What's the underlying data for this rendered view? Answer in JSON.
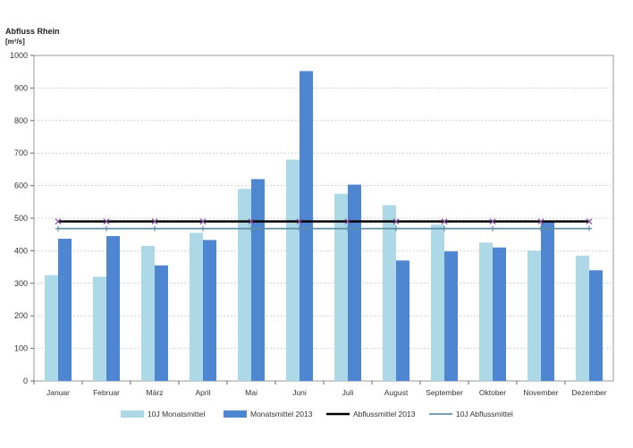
{
  "chart_data": {
    "type": "bar",
    "title": "Abfluss Rhein",
    "ylabel": "[m³/s]",
    "xlabel": "",
    "ylim": [
      0,
      1000
    ],
    "yticks": [
      0,
      100,
      200,
      300,
      400,
      500,
      600,
      700,
      800,
      900,
      1000
    ],
    "categories": [
      "Januar",
      "Februar",
      "März",
      "April",
      "Mai",
      "Juni",
      "Juli",
      "August",
      "September",
      "Oktober",
      "November",
      "Dezember"
    ],
    "series": [
      {
        "name": "10J Monatsmittel",
        "type": "bar",
        "color": "#add8e6",
        "values": [
          325,
          320,
          415,
          455,
          590,
          680,
          575,
          540,
          480,
          425,
          400,
          385
        ]
      },
      {
        "name": "Monatsmittel 2013",
        "type": "bar",
        "color": "#4f86d1",
        "values": [
          437,
          445,
          355,
          433,
          620,
          952,
          603,
          370,
          398,
          410,
          490,
          340
        ]
      },
      {
        "name": "Abflussmittel 2013",
        "type": "line",
        "color": "#000000",
        "value": 490
      },
      {
        "name": "10J Abflussmittel",
        "type": "line",
        "color": "#5e8fa8",
        "value": 468
      }
    ],
    "grid": true,
    "legend_position": "bottom"
  }
}
